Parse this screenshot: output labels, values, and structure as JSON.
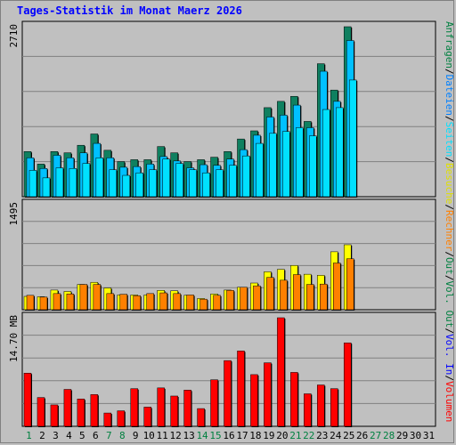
{
  "title": "Tages-Statistik im Monat Maerz 2026",
  "chart_data": [
    {
      "type": "bar",
      "panel": "top",
      "categories": [
        "1",
        "2",
        "3",
        "4",
        "5",
        "6",
        "7",
        "8",
        "9",
        "10",
        "11",
        "12",
        "13",
        "14",
        "15",
        "16",
        "17",
        "18",
        "19",
        "20",
        "21",
        "22",
        "23",
        "24",
        "25",
        "26",
        "27",
        "28",
        "29",
        "30",
        "31"
      ],
      "category_colors": [
        "#008040",
        "#000000",
        "#000000",
        "#000000",
        "#000000",
        "#000000",
        "#008040",
        "#008040",
        "#000000",
        "#000000",
        "#000000",
        "#000000",
        "#000000",
        "#008040",
        "#008040",
        "#000000",
        "#000000",
        "#000000",
        "#000000",
        "#000000",
        "#008040",
        "#008040",
        "#000000",
        "#000000",
        "#000000",
        "#000000",
        "#008040",
        "#008040",
        "#000000",
        "#000000",
        "#000000"
      ],
      "ymax_label": "2710",
      "ylim": [
        0,
        2710
      ],
      "series": [
        {
          "name": "Anfragen",
          "color": "#0f8060",
          "values": [
            720,
            520,
            720,
            700,
            820,
            1000,
            740,
            560,
            590,
            590,
            800,
            700,
            560,
            590,
            630,
            720,
            920,
            1050,
            1420,
            1520,
            1600,
            1200,
            2120,
            1700,
            2710,
            null,
            null,
            null,
            null,
            null,
            null
          ]
        },
        {
          "name": "Dateien",
          "color": "#00c0ff",
          "values": [
            620,
            450,
            660,
            620,
            700,
            850,
            620,
            470,
            480,
            520,
            640,
            570,
            460,
            510,
            500,
            600,
            750,
            980,
            1270,
            1300,
            1460,
            1100,
            2000,
            1520,
            2490,
            null,
            null,
            null,
            null,
            null,
            null
          ]
        },
        {
          "name": "Seiten",
          "color": "#00e0ff",
          "values": [
            420,
            300,
            460,
            450,
            530,
            620,
            430,
            340,
            380,
            430,
            600,
            530,
            430,
            380,
            430,
            500,
            650,
            850,
            1010,
            1040,
            1100,
            970,
            1390,
            1420,
            1860,
            null,
            null,
            null,
            null,
            null,
            null
          ]
        }
      ]
    },
    {
      "type": "bar",
      "panel": "middle",
      "categories": [
        "1",
        "2",
        "3",
        "4",
        "5",
        "6",
        "7",
        "8",
        "9",
        "10",
        "11",
        "12",
        "13",
        "14",
        "15",
        "16",
        "17",
        "18",
        "19",
        "20",
        "21",
        "22",
        "23",
        "24",
        "25",
        "26",
        "27",
        "28",
        "29",
        "30",
        "31"
      ],
      "ymax_label": "1495",
      "ylim": [
        0,
        1495
      ],
      "series": [
        {
          "name": "Besuche",
          "color": "#ffff00",
          "values": [
            190,
            185,
            280,
            260,
            360,
            390,
            310,
            210,
            210,
            210,
            275,
            270,
            205,
            160,
            225,
            280,
            320,
            380,
            540,
            575,
            630,
            505,
            490,
            825,
            925,
            null,
            null,
            null,
            null,
            null,
            null
          ]
        },
        {
          "name": "Rechner",
          "color": "#ff8000",
          "values": [
            205,
            180,
            230,
            225,
            360,
            360,
            230,
            220,
            200,
            230,
            240,
            230,
            210,
            150,
            205,
            275,
            320,
            340,
            460,
            420,
            500,
            360,
            365,
            665,
            725,
            null,
            null,
            null,
            null,
            null,
            null
          ]
        }
      ]
    },
    {
      "type": "bar",
      "panel": "bottom",
      "categories": [
        "1",
        "2",
        "3",
        "4",
        "5",
        "6",
        "7",
        "8",
        "9",
        "10",
        "11",
        "12",
        "13",
        "14",
        "15",
        "16",
        "17",
        "18",
        "19",
        "20",
        "21",
        "22",
        "23",
        "24",
        "25",
        "26",
        "27",
        "28",
        "29",
        "30",
        "31"
      ],
      "ymax_label": "14.70 MB",
      "ylim": [
        0,
        14.7
      ],
      "series": [
        {
          "name": "Volumen",
          "color": "#ff0000",
          "values": [
            7.2,
            3.9,
            2.9,
            5.0,
            3.7,
            4.3,
            1.8,
            2.1,
            5.1,
            2.6,
            5.2,
            4.1,
            4.9,
            2.4,
            6.3,
            8.9,
            10.2,
            7.0,
            8.6,
            14.7,
            7.3,
            4.4,
            5.6,
            5.1,
            11.3,
            null,
            null,
            null,
            null,
            null,
            null
          ]
        }
      ]
    }
  ],
  "legend": [
    {
      "label": "Anfragen",
      "color": "#008040"
    },
    {
      "label": "/",
      "color": "#000000"
    },
    {
      "label": "Dateien",
      "color": "#0080ff"
    },
    {
      "label": "/",
      "color": "#000000"
    },
    {
      "label": "Seiten",
      "color": "#00e0ff"
    },
    {
      "label": "/",
      "color": "#000000"
    },
    {
      "label": "Besuche",
      "color": "#e0e000"
    },
    {
      "label": "/",
      "color": "#000000"
    },
    {
      "label": "Rechner",
      "color": "#ff8000"
    },
    {
      "label": "/",
      "color": "#000000"
    },
    {
      "label": "Out",
      "color": "#008040"
    },
    {
      "label": "/",
      "color": "#000000"
    },
    {
      "label": "Vol.",
      "color": "#008040"
    },
    {
      "label": "Out",
      "color": "#008040"
    },
    {
      "label": "/",
      "color": "#000000"
    },
    {
      "label": "Vol.",
      "color": "#0000ff"
    },
    {
      "label": "In",
      "color": "#0000ff"
    },
    {
      "label": "/",
      "color": "#000000"
    },
    {
      "label": "Volumen",
      "color": "#ff0000"
    }
  ]
}
